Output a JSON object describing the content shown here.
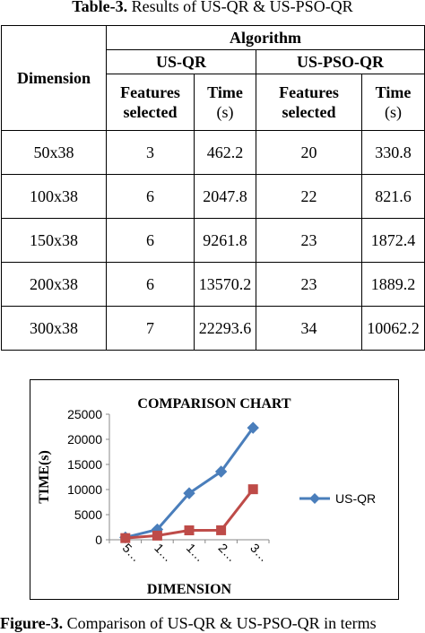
{
  "table": {
    "caption_label": "Table-3.",
    "caption_text": " Results of US-QR & US-PSO-QR",
    "header": {
      "dimension": "Dimension",
      "algorithm": "Algorithm",
      "usqr": "US-QR",
      "uspsoqr": "US-PSO-QR",
      "features_selected": "Features selected",
      "time": "Time",
      "time_unit": "(s)"
    },
    "rows": [
      {
        "dimension": "50x38",
        "usqr_features": "3",
        "usqr_time": "462.2",
        "pso_features": "20",
        "pso_time": "330.8"
      },
      {
        "dimension": "100x38",
        "usqr_features": "6",
        "usqr_time": "2047.8",
        "pso_features": "22",
        "pso_time": "821.6"
      },
      {
        "dimension": "150x38",
        "usqr_features": "6",
        "usqr_time": "9261.8",
        "pso_features": "23",
        "pso_time": "1872.4"
      },
      {
        "dimension": "200x38",
        "usqr_features": "6",
        "usqr_time": "13570.2",
        "pso_features": "23",
        "pso_time": "1889.2"
      },
      {
        "dimension": "300x38",
        "usqr_features": "7",
        "usqr_time": "22293.6",
        "pso_features": "34",
        "pso_time": "10062.2"
      }
    ]
  },
  "chart_data": {
    "type": "line",
    "title": "COMPARISON CHART",
    "xlabel": "DIMENSION",
    "ylabel": "TIME(s)",
    "categories": [
      "5…",
      "1…",
      "1…",
      "2…",
      "3…"
    ],
    "ylim": [
      0,
      25000
    ],
    "yticks": [
      0,
      5000,
      10000,
      15000,
      20000,
      25000
    ],
    "ytick_labels": [
      "0",
      "5000",
      "10000",
      "15000",
      "20000",
      "25000"
    ],
    "legend_position": "right",
    "grid": false,
    "series": [
      {
        "name": "US-QR",
        "values": [
          462.2,
          2047.8,
          9261.8,
          13570.2,
          22293.6
        ],
        "color": "#4a7ebb",
        "marker": "diamond"
      },
      {
        "name": "",
        "values": [
          330.8,
          821.6,
          1872.4,
          1889.2,
          10062.2
        ],
        "color": "#be4b48",
        "marker": "square"
      }
    ]
  },
  "figure_caption": {
    "label": "Figure-3.",
    "text": " Comparison of US-QR & US-PSO-QR in terms"
  }
}
